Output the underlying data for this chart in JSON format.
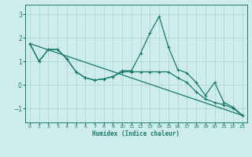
{
  "xlabel": "Humidex (Indice chaleur)",
  "background_color": "#ceecea",
  "grid_color": "#afd6d3",
  "line_color": "#1a7a6e",
  "xlim": [
    -0.5,
    23.5
  ],
  "ylim": [
    -1.6,
    3.4
  ],
  "yticks": [
    -1,
    0,
    1,
    2,
    3
  ],
  "xticks": [
    0,
    1,
    2,
    3,
    4,
    5,
    6,
    7,
    8,
    9,
    10,
    11,
    12,
    13,
    14,
    15,
    16,
    17,
    18,
    19,
    20,
    21,
    22,
    23
  ],
  "line1_x": [
    0,
    1,
    2,
    3,
    4,
    5,
    6,
    7,
    8,
    9,
    10,
    11,
    12,
    13,
    14,
    15,
    16,
    17,
    18,
    19,
    20,
    21,
    22,
    23
  ],
  "line1_y": [
    1.75,
    1.0,
    1.5,
    1.5,
    1.1,
    0.55,
    0.3,
    0.2,
    0.25,
    0.35,
    0.6,
    0.6,
    1.35,
    2.2,
    2.9,
    1.6,
    0.65,
    0.5,
    0.1,
    -0.45,
    0.1,
    -0.75,
    -0.95,
    -1.3
  ],
  "line2_x": [
    0,
    1,
    2,
    3,
    4,
    5,
    6,
    7,
    8,
    9,
    10,
    11,
    12,
    13,
    14,
    15,
    16,
    17,
    18,
    19,
    20,
    21,
    22,
    23
  ],
  "line2_y": [
    1.75,
    1.0,
    1.5,
    1.5,
    1.1,
    0.55,
    0.3,
    0.2,
    0.25,
    0.35,
    0.55,
    0.55,
    0.55,
    0.55,
    0.55,
    0.55,
    0.3,
    0.1,
    -0.3,
    -0.6,
    -0.75,
    -0.85,
    -1.0,
    -1.3
  ],
  "line3_x": [
    0,
    23
  ],
  "line3_y": [
    1.75,
    -1.3
  ]
}
